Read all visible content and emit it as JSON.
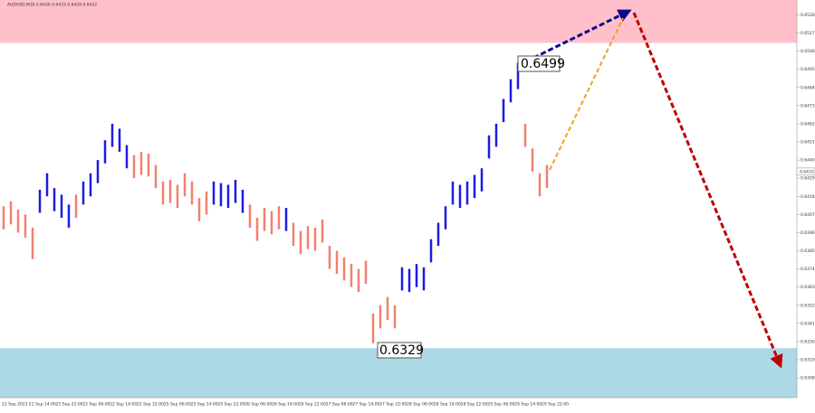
{
  "chart_data": {
    "type": "range_bars",
    "title": "AUDUSD,M30  0.6430 0.6433 0.6428 0.6432",
    "time_labels": [
      "21 Sep 2023",
      "21 Sep 14:00",
      "21 Sep 22:00",
      "22 Sep 06:00",
      "22 Sep 14:00",
      "22 Sep 22:00",
      "25 Sep 06:00",
      "25 Sep 14:00",
      "25 Sep 22:00",
      "26 Sep 06:00",
      "26 Sep 14:00",
      "26 Sep 22:00",
      "27 Sep 06:00",
      "27 Sep 14:00",
      "27 Sep 22:00",
      "28 Sep 06:00",
      "28 Sep 14:00",
      "28 Sep 22:00",
      "29 Sep 06:00",
      "29 Sep 14:00",
      "29 Sep 22:00"
    ],
    "highs": [
      0.6412,
      0.6415,
      0.641,
      0.6407,
      0.6399,
      0.6422,
      0.6432,
      0.6423,
      0.6419,
      0.6413,
      0.6419,
      0.6427,
      0.6432,
      0.644,
      0.6452,
      0.6462,
      0.6459,
      0.6449,
      0.6443,
      0.6445,
      0.6444,
      0.6437,
      0.6427,
      0.6428,
      0.6425,
      0.6432,
      0.6427,
      0.6417,
      0.6421,
      0.6427,
      0.6426,
      0.6425,
      0.6428,
      0.6422,
      0.6413,
      0.6405,
      0.6411,
      0.6409,
      0.6412,
      0.6411,
      0.6402,
      0.6397,
      0.64,
      0.6399,
      0.6404,
      0.6388,
      0.6385,
      0.6381,
      0.6377,
      0.6374,
      0.6379,
      0.6347,
      0.6352,
      0.6357,
      0.6352,
      0.6375,
      0.6374,
      0.6377,
      0.6375,
      0.6392,
      0.6402,
      0.6412,
      0.6427,
      0.6425,
      0.6427,
      0.6431,
      0.6435,
      0.6455,
      0.6462,
      0.6477,
      0.6489,
      0.6499,
      0.6462,
      0.6447,
      0.6432,
      0.6437
    ],
    "lows": [
      0.6398,
      0.6401,
      0.6396,
      0.6393,
      0.638,
      0.6408,
      0.6418,
      0.6409,
      0.6405,
      0.6399,
      0.6405,
      0.6413,
      0.6418,
      0.6426,
      0.6438,
      0.6448,
      0.6445,
      0.6435,
      0.6429,
      0.6431,
      0.643,
      0.6423,
      0.6413,
      0.6414,
      0.6411,
      0.6418,
      0.6413,
      0.6403,
      0.6407,
      0.6413,
      0.6412,
      0.6411,
      0.6414,
      0.6408,
      0.6399,
      0.6391,
      0.6397,
      0.6395,
      0.6398,
      0.6397,
      0.6388,
      0.6383,
      0.6386,
      0.6385,
      0.639,
      0.6374,
      0.6371,
      0.6367,
      0.6363,
      0.636,
      0.6365,
      0.6329,
      0.6338,
      0.6343,
      0.6338,
      0.6361,
      0.636,
      0.6363,
      0.6361,
      0.6378,
      0.6388,
      0.6398,
      0.6413,
      0.6411,
      0.6413,
      0.6417,
      0.6421,
      0.6441,
      0.6448,
      0.6463,
      0.6475,
      0.6483,
      0.6448,
      0.6433,
      0.6418,
      0.6423
    ],
    "bar_colors": [
      "#f08070",
      "#f08070",
      "#f08070",
      "#f08070",
      "#f08070",
      "#1c1ce0",
      "#1c1ce0",
      "#1c1ce0",
      "#1c1ce0",
      "#1c1ce0",
      "#f08070",
      "#1c1ce0",
      "#1c1ce0",
      "#1c1ce0",
      "#1c1ce0",
      "#1c1ce0",
      "#1c1ce0",
      "#1c1ce0",
      "#f08070",
      "#f08070",
      "#f08070",
      "#f08070",
      "#f08070",
      "#f08070",
      "#f08070",
      "#f08070",
      "#f08070",
      "#f08070",
      "#f08070",
      "#1c1ce0",
      "#1c1ce0",
      "#1c1ce0",
      "#1c1ce0",
      "#1c1ce0",
      "#f08070",
      "#f08070",
      "#f08070",
      "#f08070",
      "#f08070",
      "#1c1ce0",
      "#f08070",
      "#f08070",
      "#f08070",
      "#f08070",
      "#f08070",
      "#f08070",
      "#f08070",
      "#f08070",
      "#f08070",
      "#f08070",
      "#f08070",
      "#f08070",
      "#f08070",
      "#f08070",
      "#f08070",
      "#1c1ce0",
      "#1c1ce0",
      "#1c1ce0",
      "#1c1ce0",
      "#1c1ce0",
      "#1c1ce0",
      "#1c1ce0",
      "#1c1ce0",
      "#1c1ce0",
      "#1c1ce0",
      "#1c1ce0",
      "#1c1ce0",
      "#1c1ce0",
      "#1c1ce0",
      "#1c1ce0",
      "#1c1ce0",
      "#1c1ce0",
      "#f08070",
      "#f08070",
      "#f08070",
      "#f08070"
    ],
    "zones": [
      {
        "from": 0.6511,
        "to": 0.6537,
        "color": "#ffc0cb"
      },
      {
        "from": 0.6296,
        "to": 0.6326,
        "color": "#add8e6"
      }
    ],
    "annotations": [
      {
        "label": "0.6499"
      },
      {
        "label": "0.6329"
      }
    ],
    "current_price": 0.6433,
    "ylim": [
      0.6296,
      0.6537
    ],
    "yticks": [
      0.6528,
      0.6517,
      0.6506,
      0.6495,
      0.6484,
      0.6473,
      0.6462,
      0.6451,
      {
        "value": 0.644,
        "label": "0.6440"
      },
      0.6429,
      0.6418,
      0.6407,
      0.6396,
      0.6385,
      0.6374,
      0.6363,
      0.6352,
      0.6341,
      {
        "value": 0.633,
        "label": "0.6330"
      },
      0.6319,
      0.6308
    ]
  }
}
